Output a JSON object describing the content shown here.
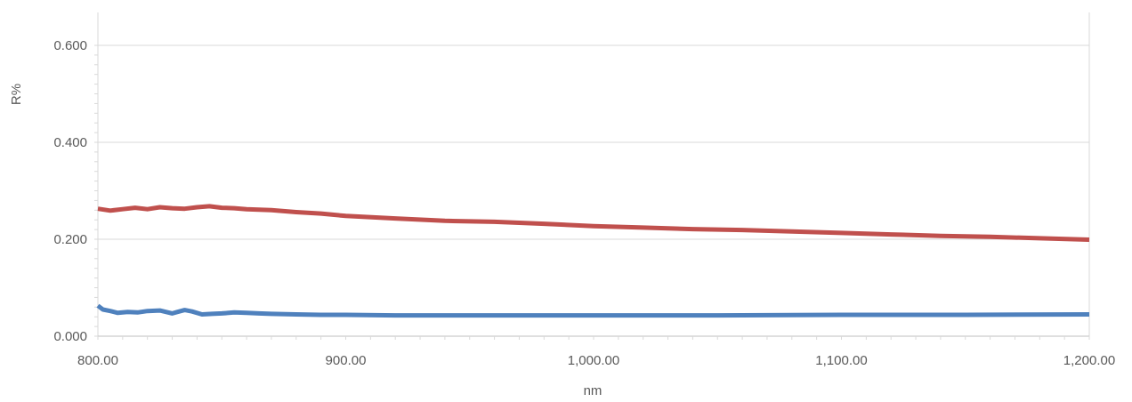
{
  "chart_data": {
    "type": "line",
    "title": "",
    "xlabel": "nm",
    "ylabel": "R%",
    "xlim": [
      800,
      1200
    ],
    "ylim": [
      0,
      0.6
    ],
    "x_ticks": [
      800,
      900,
      1000,
      1100,
      1200
    ],
    "x_tick_labels": [
      "800.00",
      "900.00",
      "1,000.00",
      "1,100.00",
      "1,200.00"
    ],
    "y_ticks": [
      0,
      0.2,
      0.4,
      0.6
    ],
    "y_tick_labels": [
      "0.000",
      "0.200",
      "0.400",
      "0.600"
    ],
    "grid": true,
    "legend": "none",
    "series": [
      {
        "color": "#c0504d",
        "x": [
          800,
          805,
          810,
          815,
          820,
          825,
          830,
          835,
          840,
          845,
          850,
          855,
          860,
          870,
          880,
          890,
          900,
          920,
          940,
          960,
          980,
          1000,
          1020,
          1040,
          1060,
          1080,
          1100,
          1120,
          1140,
          1160,
          1180,
          1200
        ],
        "y": [
          0.263,
          0.259,
          0.262,
          0.265,
          0.262,
          0.266,
          0.264,
          0.263,
          0.266,
          0.268,
          0.265,
          0.264,
          0.262,
          0.26,
          0.256,
          0.253,
          0.248,
          0.243,
          0.238,
          0.236,
          0.232,
          0.227,
          0.224,
          0.221,
          0.219,
          0.216,
          0.213,
          0.21,
          0.207,
          0.205,
          0.202,
          0.199
        ]
      },
      {
        "color": "#4f81bd",
        "x": [
          800,
          802,
          805,
          808,
          812,
          816,
          820,
          825,
          830,
          832,
          835,
          838,
          842,
          846,
          850,
          855,
          860,
          865,
          870,
          880,
          890,
          900,
          920,
          940,
          960,
          980,
          1000,
          1050,
          1100,
          1150,
          1200
        ],
        "y": [
          0.063,
          0.055,
          0.052,
          0.048,
          0.05,
          0.049,
          0.052,
          0.053,
          0.047,
          0.05,
          0.054,
          0.051,
          0.045,
          0.046,
          0.047,
          0.049,
          0.048,
          0.047,
          0.046,
          0.045,
          0.044,
          0.044,
          0.043,
          0.043,
          0.043,
          0.043,
          0.043,
          0.043,
          0.044,
          0.044,
          0.045
        ]
      }
    ]
  }
}
